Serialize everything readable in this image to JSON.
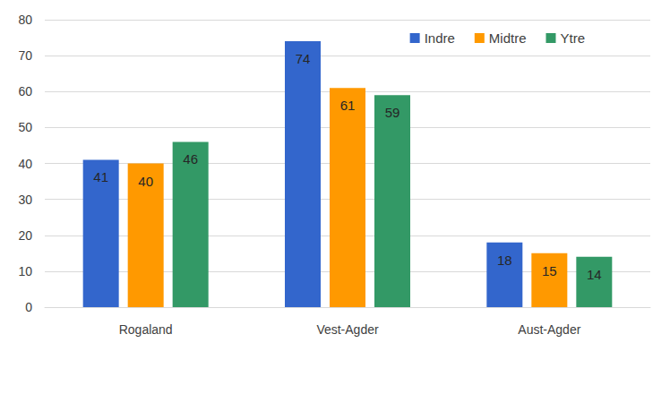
{
  "chart_data": {
    "type": "bar",
    "categories": [
      "Rogaland",
      "Vest-Agder",
      "Aust-Agder"
    ],
    "series": [
      {
        "name": "Indre",
        "color": "#3366cc",
        "values": [
          41,
          74,
          18
        ]
      },
      {
        "name": "Midtre",
        "color": "#ff9900",
        "values": [
          40,
          61,
          15
        ]
      },
      {
        "name": "Ytre",
        "color": "#339966",
        "values": [
          46,
          59,
          14
        ]
      }
    ],
    "ylim": [
      0,
      80
    ],
    "yticks": [
      0,
      10,
      20,
      30,
      40,
      50,
      60,
      70,
      80
    ],
    "grid": true,
    "legend": "top-right",
    "data_labels": true
  }
}
